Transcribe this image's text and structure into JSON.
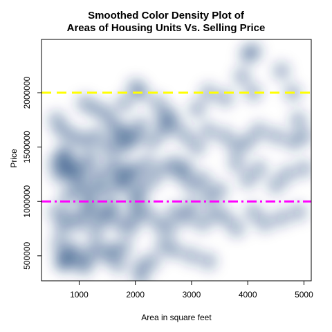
{
  "chart_data": {
    "type": "heatmap",
    "title_line1": "Smoothed Color Density Plot of",
    "title_line2": "Areas of Housing Units Vs. Selling Price",
    "xlabel": "Area in square feet",
    "ylabel": "Price",
    "xlim": [
      330,
      5130
    ],
    "ylim": [
      270000,
      2490000
    ],
    "x_ticks": [
      1000,
      2000,
      3000,
      4000,
      5000
    ],
    "y_ticks": [
      500000,
      1000000,
      1500000,
      2000000
    ],
    "density_color": "#08306b",
    "reference_lines": [
      {
        "value": 2000000,
        "color": "#ffff00",
        "style": "dashed"
      },
      {
        "value": 1000000,
        "color": "#ff00ff",
        "style": "dotdash"
      }
    ],
    "points": [
      [
        700,
        450000
      ],
      [
        800,
        500000
      ],
      [
        750,
        430000
      ],
      [
        650,
        600000
      ],
      [
        900,
        560000
      ],
      [
        1000,
        450000
      ],
      [
        1100,
        400000
      ],
      [
        1200,
        500000
      ],
      [
        1300,
        600000
      ],
      [
        1500,
        500000
      ],
      [
        1600,
        550000
      ],
      [
        1800,
        580000
      ],
      [
        1700,
        420000
      ],
      [
        2100,
        400000
      ],
      [
        2300,
        450000
      ],
      [
        2500,
        600000
      ],
      [
        2700,
        550000
      ],
      [
        3000,
        500000
      ],
      [
        3300,
        450000
      ],
      [
        2100,
        300000
      ],
      [
        700,
        750000
      ],
      [
        800,
        850000
      ],
      [
        600,
        900000
      ],
      [
        1000,
        800000
      ],
      [
        1100,
        900000
      ],
      [
        1300,
        750000
      ],
      [
        1400,
        850000
      ],
      [
        1500,
        900000
      ],
      [
        1700,
        800000
      ],
      [
        1900,
        750000
      ],
      [
        2000,
        850000
      ],
      [
        2200,
        900000
      ],
      [
        2400,
        800000
      ],
      [
        2600,
        750000
      ],
      [
        2700,
        900000
      ],
      [
        2900,
        850000
      ],
      [
        3200,
        800000
      ],
      [
        3400,
        900000
      ],
      [
        3600,
        850000
      ],
      [
        3800,
        750000
      ],
      [
        4100,
        900000
      ],
      [
        4300,
        800000
      ],
      [
        4600,
        850000
      ],
      [
        4900,
        900000
      ],
      [
        1200,
        950000
      ],
      [
        1600,
        950000
      ],
      [
        2000,
        950000
      ],
      [
        3000,
        950000
      ],
      [
        600,
        1350000
      ],
      [
        700,
        1400000
      ],
      [
        800,
        1300000
      ],
      [
        750,
        1450000
      ],
      [
        900,
        1350000
      ],
      [
        650,
        1250000
      ],
      [
        850,
        1250000
      ],
      [
        1000,
        1200000
      ],
      [
        1100,
        1300000
      ],
      [
        1200,
        1400000
      ],
      [
        1000,
        1100000
      ],
      [
        1300,
        1150000
      ],
      [
        1400,
        1250000
      ],
      [
        1500,
        1100000
      ],
      [
        1600,
        1350000
      ],
      [
        1700,
        1250000
      ],
      [
        1800,
        1200000
      ],
      [
        1900,
        1300000
      ],
      [
        1750,
        1150000
      ],
      [
        2000,
        1250000
      ],
      [
        2100,
        1100000
      ],
      [
        2200,
        1350000
      ],
      [
        2300,
        1200000
      ],
      [
        2500,
        1300000
      ],
      [
        2700,
        1350000
      ],
      [
        2800,
        1250000
      ],
      [
        2900,
        1300000
      ],
      [
        3000,
        1150000
      ],
      [
        3200,
        1200000
      ],
      [
        3500,
        1100000
      ],
      [
        3800,
        1350000
      ],
      [
        4000,
        1200000
      ],
      [
        4200,
        1300000
      ],
      [
        4500,
        1150000
      ],
      [
        4700,
        1250000
      ],
      [
        5000,
        1300000
      ],
      [
        800,
        1050000
      ],
      [
        1200,
        1050000
      ],
      [
        2000,
        1050000
      ],
      [
        3300,
        1050000
      ],
      [
        1700,
        1600000
      ],
      [
        1800,
        1650000
      ],
      [
        1900,
        1550000
      ],
      [
        1750,
        1500000
      ],
      [
        1600,
        1700000
      ],
      [
        1500,
        1500000
      ],
      [
        1300,
        1600000
      ],
      [
        1100,
        1550000
      ],
      [
        900,
        1600000
      ],
      [
        700,
        1650000
      ],
      [
        2000,
        1600000
      ],
      [
        2100,
        1700000
      ],
      [
        2300,
        1550000
      ],
      [
        2500,
        1650000
      ],
      [
        2700,
        1700000
      ],
      [
        2900,
        1600000
      ],
      [
        3100,
        1500000
      ],
      [
        3300,
        1650000
      ],
      [
        3600,
        1600000
      ],
      [
        3800,
        1500000
      ],
      [
        4000,
        1550000
      ],
      [
        4200,
        1650000
      ],
      [
        4500,
        1600000
      ],
      [
        4800,
        1550000
      ],
      [
        5000,
        1600000
      ],
      [
        1300,
        1850000
      ],
      [
        1500,
        1800000
      ],
      [
        1800,
        1900000
      ],
      [
        2000,
        2050000
      ],
      [
        2100,
        2000000
      ],
      [
        2400,
        1900000
      ],
      [
        2600,
        1800000
      ],
      [
        2500,
        1750000
      ],
      [
        3300,
        2000000
      ],
      [
        3600,
        1950000
      ],
      [
        3900,
        2150000
      ],
      [
        4100,
        2000000
      ],
      [
        4600,
        2200000
      ],
      [
        4800,
        2000000
      ],
      [
        4100,
        2380000
      ],
      [
        4000,
        2350000
      ],
      [
        3100,
        1850000
      ],
      [
        1100,
        1900000
      ],
      [
        600,
        1750000
      ],
      [
        4900,
        1750000
      ]
    ]
  }
}
